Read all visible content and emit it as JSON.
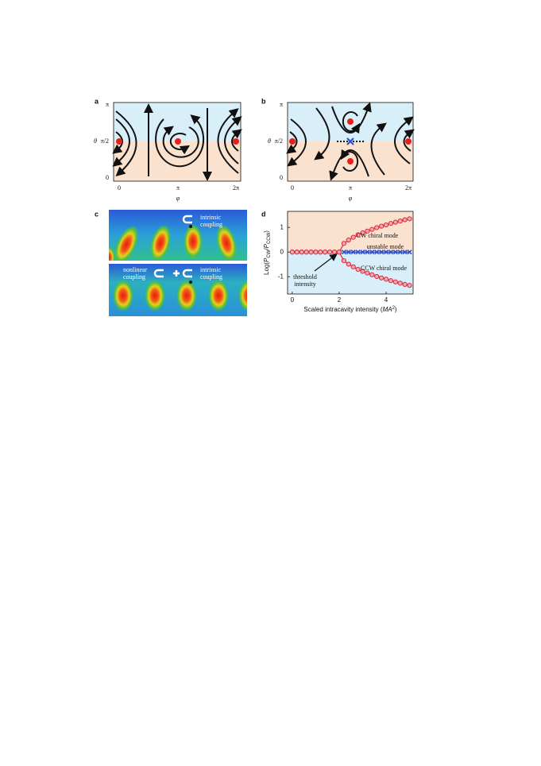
{
  "panel_a": {
    "label": "a",
    "ylabel": "θ",
    "xlabel": "φ",
    "yticks": [
      "π",
      "π/2",
      "0"
    ],
    "xticks": [
      "0",
      "π",
      "2π"
    ]
  },
  "panel_b": {
    "label": "b",
    "ylabel": "θ",
    "xlabel": "φ",
    "yticks": [
      "π",
      "π/2",
      "0"
    ],
    "xticks": [
      "0",
      "π",
      "2π"
    ]
  },
  "panel_c": {
    "label": "c",
    "top": {
      "intrinsic": [
        "intrinsic",
        "coupling"
      ]
    },
    "bottom": {
      "nonlinear": [
        "nonlinear",
        "coupling"
      ],
      "intrinsic": [
        "intrinsic",
        "coupling"
      ]
    }
  },
  "panel_d": {
    "label": "d"
  },
  "chart_data": {
    "type": "scatter",
    "ylabel_parts": [
      "Log(",
      "P",
      "CW",
      "/",
      "P",
      "CCW",
      ")"
    ],
    "xlabel_parts": [
      "Scaled intracavity intensity (",
      "MA",
      "2",
      ")"
    ],
    "annotation": [
      "threshold",
      "intensity"
    ],
    "x": [
      0,
      0.2,
      0.4,
      0.6,
      0.8,
      1,
      1.2,
      1.4,
      1.6,
      1.8,
      2,
      2.2,
      2.4,
      2.6,
      2.8,
      3,
      3.2,
      3.4,
      3.6,
      3.8,
      4,
      4.2,
      4.4,
      4.6,
      4.8,
      5
    ],
    "series": [
      {
        "name": "CW chiral mode",
        "color": "#d8283c",
        "marker": "o",
        "values": [
          0,
          0,
          0,
          0,
          0,
          0,
          0,
          0,
          0,
          0,
          0,
          0.35,
          0.49,
          0.6,
          0.7,
          0.78,
          0.85,
          0.92,
          0.99,
          1.05,
          1.1,
          1.16,
          1.21,
          1.26,
          1.31,
          1.35
        ]
      },
      {
        "name": "unstable mode",
        "color": "#2b4fd8",
        "marker": "x",
        "values": [
          null,
          null,
          null,
          null,
          null,
          null,
          null,
          null,
          null,
          null,
          null,
          0,
          0,
          0,
          0,
          0,
          0,
          0,
          0,
          0,
          0,
          0,
          0,
          0,
          0,
          0
        ]
      },
      {
        "name": "CCW chiral mode",
        "color": "#d8283c",
        "marker": "o",
        "values": [
          0,
          0,
          0,
          0,
          0,
          0,
          0,
          0,
          0,
          0,
          0,
          -0.35,
          -0.49,
          -0.6,
          -0.7,
          -0.78,
          -0.85,
          -0.92,
          -0.99,
          -1.05,
          -1.1,
          -1.16,
          -1.21,
          -1.26,
          -1.31,
          -1.35
        ]
      }
    ],
    "xlim": [
      -0.2,
      5.15
    ],
    "ylim": [
      -1.7,
      1.65
    ],
    "xticks": [
      0,
      2,
      4
    ],
    "yticks": [
      1,
      0,
      -1
    ]
  }
}
